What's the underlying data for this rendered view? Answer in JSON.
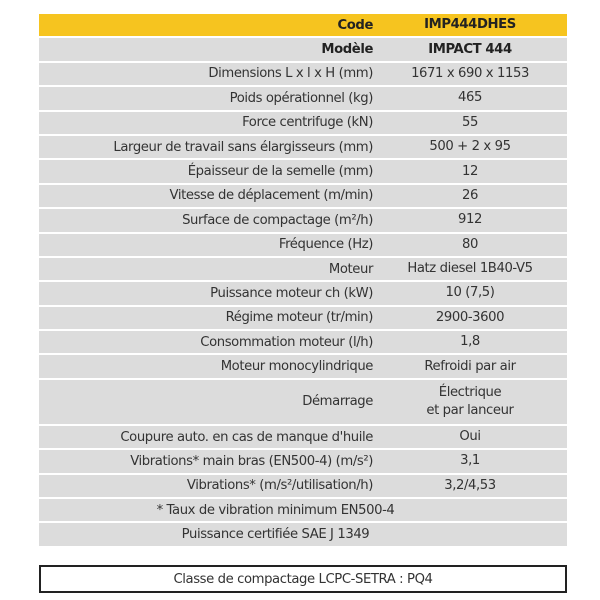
{
  "header": {
    "label": "Code",
    "value": "IMP444DHES"
  },
  "model": {
    "label": "Modèle",
    "value": "IMPACT 444"
  },
  "specs": [
    {
      "label": "Dimensions L x l x H (mm)",
      "value": "1671 x 690 x 1153"
    },
    {
      "label": "Poids opérationnel (kg)",
      "value": "465"
    },
    {
      "label": "Force centrifuge (kN)",
      "value": "55"
    },
    {
      "label": "Largeur de travail sans élargisseurs (mm)",
      "value": "500 + 2 x 95"
    },
    {
      "label": "Épaisseur de la semelle (mm)",
      "value": "12"
    },
    {
      "label": "Vitesse de déplacement (m/min)",
      "value": "26"
    },
    {
      "label": "Surface de compactage (m²/h)",
      "value": "912"
    },
    {
      "label": "Fréquence (Hz)",
      "value": "80"
    },
    {
      "label": "Moteur",
      "value": "Hatz diesel 1B40-V5"
    },
    {
      "label": "Puissance moteur ch (kW)",
      "value": "10 (7,5)"
    },
    {
      "label": "Régime moteur (tr/min)",
      "value": "2900-3600"
    },
    {
      "label": "Consommation moteur (l/h)",
      "value": "1,8"
    },
    {
      "label": "Moteur monocylindrique",
      "value": "Refroidi par air"
    }
  ],
  "start": {
    "label": "Démarrage",
    "value_line1": "Électrique",
    "value_line2": "et par lanceur"
  },
  "specs2": [
    {
      "label": "Coupure auto. en cas de manque d'huile",
      "value": "Oui"
    },
    {
      "label": "Vibrations* main bras (EN500-4) (m/s²)",
      "value": "3,1"
    },
    {
      "label": "Vibrations* (m/s²/utilisation/h)",
      "value": "3,2/4,53"
    }
  ],
  "notes": [
    "* Taux de vibration minimum EN500-4",
    "Puissance certifiée SAE J 1349"
  ],
  "compaction_class": "Classe de compactage LCPC-SETRA : PQ4",
  "colors": {
    "header": "#f6c41f",
    "row": "#dcdcdc",
    "border": "#222222"
  }
}
